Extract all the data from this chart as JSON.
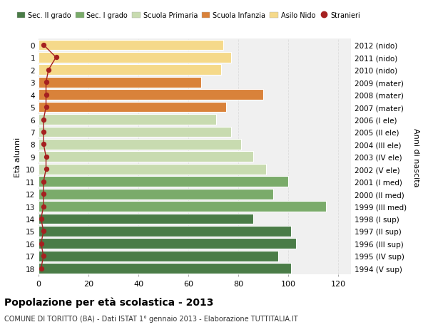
{
  "ages": [
    18,
    17,
    16,
    15,
    14,
    13,
    12,
    11,
    10,
    9,
    8,
    7,
    6,
    5,
    4,
    3,
    2,
    1,
    0
  ],
  "right_labels": [
    "1994 (V sup)",
    "1995 (IV sup)",
    "1996 (III sup)",
    "1997 (II sup)",
    "1998 (I sup)",
    "1999 (III med)",
    "2000 (II med)",
    "2001 (I med)",
    "2002 (V ele)",
    "2003 (IV ele)",
    "2004 (III ele)",
    "2005 (II ele)",
    "2006 (I ele)",
    "2007 (mater)",
    "2008 (mater)",
    "2009 (mater)",
    "2010 (nido)",
    "2011 (nido)",
    "2012 (nido)"
  ],
  "bar_values": [
    101,
    96,
    103,
    101,
    86,
    115,
    94,
    100,
    91,
    86,
    81,
    77,
    71,
    75,
    90,
    65,
    73,
    77,
    74
  ],
  "bar_colors": [
    "#4a7c47",
    "#4a7c47",
    "#4a7c47",
    "#4a7c47",
    "#4a7c47",
    "#7aab6a",
    "#7aab6a",
    "#7aab6a",
    "#c8dbb0",
    "#c8dbb0",
    "#c8dbb0",
    "#c8dbb0",
    "#c8dbb0",
    "#d9823a",
    "#d9823a",
    "#d9823a",
    "#f5d98a",
    "#f5d98a",
    "#f5d98a"
  ],
  "stranieri_values": [
    1,
    2,
    1,
    2,
    1,
    2,
    2,
    2,
    3,
    3,
    2,
    2,
    2,
    3,
    3,
    3,
    4,
    7,
    2
  ],
  "stranieri_color": "#a52020",
  "legend_labels": [
    "Sec. II grado",
    "Sec. I grado",
    "Scuola Primaria",
    "Scuola Infanzia",
    "Asilo Nido",
    "Stranieri"
  ],
  "legend_colors": [
    "#4a7c47",
    "#7aab6a",
    "#c8dbb0",
    "#d9823a",
    "#f5d98a",
    "#a52020"
  ],
  "ylabel_label": "Età alunni",
  "right_ylabel": "Anni di nascita",
  "title": "Popolazione per età scolastica - 2013",
  "subtitle": "COMUNE DI TORITTO (BA) - Dati ISTAT 1° gennaio 2013 - Elaborazione TUTTITALIA.IT",
  "xlim": [
    0,
    125
  ],
  "xticks": [
    0,
    20,
    40,
    60,
    80,
    100,
    120
  ],
  "bg_color": "#ffffff",
  "bar_edge_color": "#ffffff",
  "plot_bg_color": "#f0f0f0",
  "grid_color": "#dddddd"
}
